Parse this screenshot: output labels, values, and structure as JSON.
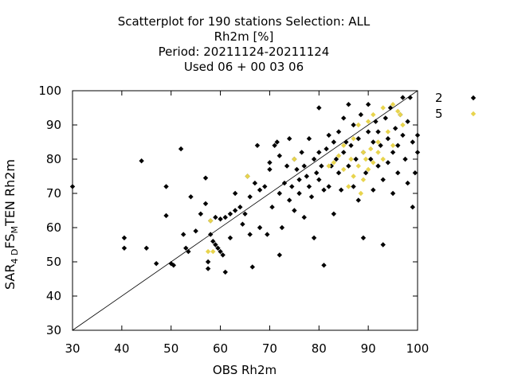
{
  "title_lines": [
    "Scatterplot for  190 stations Selection: ALL",
    "Rh2m [%]",
    "Period: 20211124-20211124",
    "Used  06 + 00 03 06"
  ],
  "axes": {
    "xlabel": "OBS Rh2m",
    "ylabel_parts": [
      "SAR",
      "4 D",
      "FS",
      "M",
      "TEN Rh2m"
    ]
  },
  "colors": {
    "series_2": "#000000",
    "series_5": "#e8d44d",
    "diagonal": "#000000"
  },
  "chart_data": {
    "type": "scatter",
    "xlim": [
      30,
      100
    ],
    "ylim": [
      30,
      100
    ],
    "xticks": [
      30,
      40,
      50,
      60,
      70,
      80,
      90,
      100
    ],
    "yticks": [
      30,
      40,
      50,
      60,
      70,
      80,
      90,
      100
    ],
    "grid": false,
    "legend_position": "right",
    "reference_line": "y = x",
    "series": [
      {
        "name": "2",
        "marker": "diamond",
        "points": [
          [
            30,
            72
          ],
          [
            40.5,
            57
          ],
          [
            40.5,
            54
          ],
          [
            44,
            79.5
          ],
          [
            45,
            54
          ],
          [
            47,
            49.5
          ],
          [
            49,
            72
          ],
          [
            49,
            63.5
          ],
          [
            50,
            49.5
          ],
          [
            50.5,
            49
          ],
          [
            52,
            83
          ],
          [
            52.5,
            58
          ],
          [
            53,
            54
          ],
          [
            53.5,
            53
          ],
          [
            54,
            69
          ],
          [
            55,
            59
          ],
          [
            56,
            64
          ],
          [
            57,
            74.5
          ],
          [
            57,
            67
          ],
          [
            57.5,
            50
          ],
          [
            57.5,
            48
          ],
          [
            58,
            62
          ],
          [
            58,
            58
          ],
          [
            58.5,
            56
          ],
          [
            59,
            63
          ],
          [
            59,
            55
          ],
          [
            59.5,
            54
          ],
          [
            60,
            62.5
          ],
          [
            60,
            53
          ],
          [
            60.5,
            52
          ],
          [
            61,
            47
          ],
          [
            61,
            63
          ],
          [
            62,
            64
          ],
          [
            62,
            57
          ],
          [
            63,
            65
          ],
          [
            63,
            70
          ],
          [
            64,
            66
          ],
          [
            64.5,
            61
          ],
          [
            65,
            64
          ],
          [
            65.5,
            75
          ],
          [
            66,
            69
          ],
          [
            66,
            58
          ],
          [
            66.5,
            48.5
          ],
          [
            67,
            73
          ],
          [
            67.5,
            84
          ],
          [
            68,
            71
          ],
          [
            68,
            60
          ],
          [
            69,
            72
          ],
          [
            69.5,
            58
          ],
          [
            70,
            79
          ],
          [
            70,
            77
          ],
          [
            70.5,
            66
          ],
          [
            71,
            84
          ],
          [
            71.5,
            85
          ],
          [
            72,
            81
          ],
          [
            72,
            70
          ],
          [
            72,
            52
          ],
          [
            72.5,
            60
          ],
          [
            73,
            73
          ],
          [
            73.5,
            78
          ],
          [
            74,
            86
          ],
          [
            74,
            68
          ],
          [
            74.5,
            72
          ],
          [
            75,
            80
          ],
          [
            75,
            65
          ],
          [
            75.5,
            77
          ],
          [
            76,
            74
          ],
          [
            76,
            70
          ],
          [
            76.5,
            82
          ],
          [
            77,
            78
          ],
          [
            77,
            63
          ],
          [
            77.5,
            75
          ],
          [
            78,
            86
          ],
          [
            78,
            72
          ],
          [
            78.5,
            69
          ],
          [
            79,
            80
          ],
          [
            79,
            57
          ],
          [
            79.5,
            76
          ],
          [
            80,
            82
          ],
          [
            80,
            95
          ],
          [
            80,
            74
          ],
          [
            80.5,
            78
          ],
          [
            81,
            71
          ],
          [
            81,
            49
          ],
          [
            81.5,
            83
          ],
          [
            82,
            87
          ],
          [
            82,
            72
          ],
          [
            82.5,
            78
          ],
          [
            83,
            85
          ],
          [
            83,
            64
          ],
          [
            83.5,
            80
          ],
          [
            84,
            88
          ],
          [
            84,
            76
          ],
          [
            84.5,
            71
          ],
          [
            85,
            82
          ],
          [
            85,
            92
          ],
          [
            85.5,
            85
          ],
          [
            86,
            78
          ],
          [
            86,
            96
          ],
          [
            86.5,
            84
          ],
          [
            87,
            90
          ],
          [
            87,
            72
          ],
          [
            87.5,
            80
          ],
          [
            88,
            86
          ],
          [
            88,
            68
          ],
          [
            88.5,
            93
          ],
          [
            89,
            82
          ],
          [
            89,
            57
          ],
          [
            89.5,
            76
          ],
          [
            90,
            88
          ],
          [
            90,
            96
          ],
          [
            90.5,
            80
          ],
          [
            91,
            85
          ],
          [
            91,
            71
          ],
          [
            91.5,
            91
          ],
          [
            92,
            78
          ],
          [
            92,
            88
          ],
          [
            92.5,
            84
          ],
          [
            93,
            74
          ],
          [
            93,
            55
          ],
          [
            93.5,
            92
          ],
          [
            94,
            86
          ],
          [
            94,
            79
          ],
          [
            94.5,
            95
          ],
          [
            95,
            82
          ],
          [
            95,
            70
          ],
          [
            95.5,
            89
          ],
          [
            96,
            84
          ],
          [
            96,
            76
          ],
          [
            96.5,
            93
          ],
          [
            97,
            98
          ],
          [
            97,
            87
          ],
          [
            97.5,
            80
          ],
          [
            98,
            91
          ],
          [
            98,
            73
          ],
          [
            98.5,
            98
          ],
          [
            99,
            66
          ],
          [
            99,
            85
          ],
          [
            99.5,
            76
          ],
          [
            100,
            87
          ],
          [
            100,
            82
          ]
        ]
      },
      {
        "name": "5",
        "marker": "diamond",
        "points": [
          [
            57.5,
            53
          ],
          [
            58,
            62
          ],
          [
            58.5,
            53
          ],
          [
            65.5,
            75
          ],
          [
            75,
            80
          ],
          [
            82,
            78
          ],
          [
            83,
            79
          ],
          [
            84,
            81
          ],
          [
            85,
            77
          ],
          [
            85,
            84
          ],
          [
            86,
            72
          ],
          [
            86.5,
            80
          ],
          [
            87,
            75
          ],
          [
            87,
            86
          ],
          [
            88,
            78
          ],
          [
            88,
            90
          ],
          [
            88.5,
            70
          ],
          [
            89,
            74
          ],
          [
            89,
            82
          ],
          [
            89.5,
            80
          ],
          [
            90,
            77
          ],
          [
            90,
            91
          ],
          [
            90.5,
            83
          ],
          [
            91,
            79
          ],
          [
            91,
            93
          ],
          [
            92,
            82
          ],
          [
            92,
            85
          ],
          [
            93,
            80
          ],
          [
            93,
            95
          ],
          [
            94,
            88
          ],
          [
            95,
            84
          ],
          [
            95,
            96
          ],
          [
            96,
            94
          ],
          [
            96.5,
            93
          ],
          [
            97,
            90
          ]
        ]
      }
    ]
  }
}
